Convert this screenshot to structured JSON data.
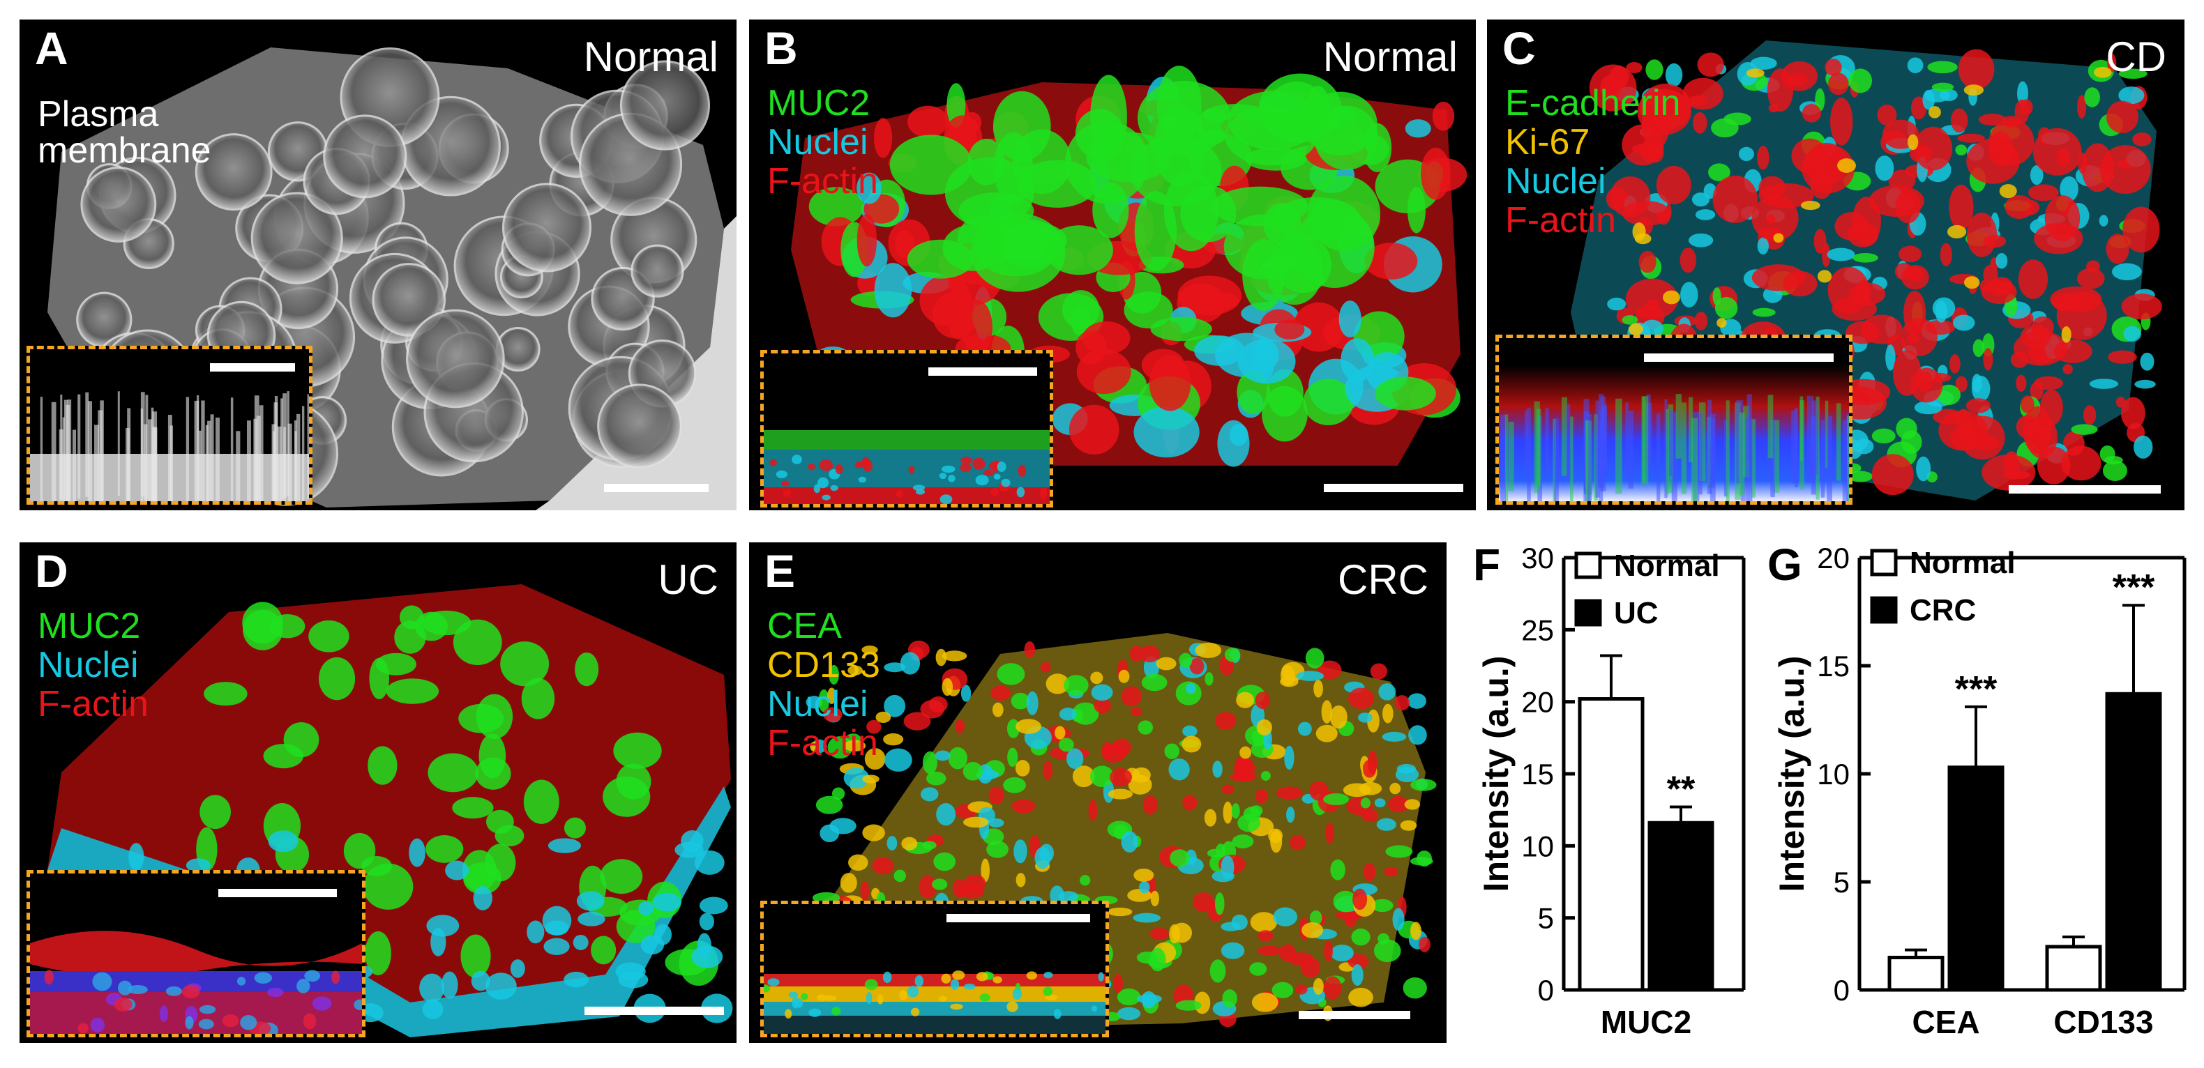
{
  "panels": {
    "A": {
      "letter": "A",
      "condition": "Normal",
      "label1": "Plasma",
      "label2": "membrane"
    },
    "B": {
      "letter": "B",
      "condition": "Normal",
      "stains": [
        "MUC2",
        "Nuclei",
        "F-actin"
      ]
    },
    "C": {
      "letter": "C",
      "condition": "CD",
      "stains": [
        "E-cadherin",
        "Ki-67",
        "Nuclei",
        "F-actin"
      ]
    },
    "D": {
      "letter": "D",
      "condition": "UC",
      "stains": [
        "MUC2",
        "Nuclei",
        "F-actin"
      ]
    },
    "E": {
      "letter": "E",
      "condition": "CRC",
      "stains": [
        "CEA",
        "CD133",
        "Nuclei",
        "F-actin"
      ]
    }
  },
  "colors": {
    "green": "#1ee01e",
    "cyan": "#18c8e0",
    "red": "#e8141a",
    "yellow": "#f2c200",
    "blue": "#2a6cff",
    "inset_border": "#f5a623"
  },
  "chart_data": [
    {
      "panel": "F",
      "type": "bar",
      "categories": [
        "MUC2"
      ],
      "series": [
        {
          "name": "Normal",
          "values": [
            20.2
          ],
          "errors": [
            3.0
          ],
          "fill": "#ffffff",
          "significance": [
            ""
          ]
        },
        {
          "name": "UC",
          "values": [
            11.6
          ],
          "errors": [
            1.1
          ],
          "fill": "#000000",
          "significance": [
            "**"
          ]
        }
      ],
      "ylabel": "Intensity (a.u.)",
      "ylim": [
        0,
        30
      ],
      "yticks": [
        0,
        5,
        10,
        15,
        20,
        25,
        30
      ],
      "legend": "top-right"
    },
    {
      "panel": "G",
      "type": "bar",
      "categories": [
        "CEA",
        "CD133"
      ],
      "series": [
        {
          "name": "Normal",
          "values": [
            1.5,
            2.0
          ],
          "errors": [
            0.35,
            0.45
          ],
          "fill": "#ffffff",
          "significance": [
            "",
            ""
          ]
        },
        {
          "name": "CRC",
          "values": [
            10.3,
            13.7
          ],
          "errors": [
            2.8,
            4.1
          ],
          "fill": "#000000",
          "significance": [
            "***",
            "***"
          ]
        }
      ],
      "ylabel": "Intensity (a.u.)",
      "ylim": [
        0,
        20
      ],
      "yticks": [
        0,
        5,
        10,
        15,
        20
      ],
      "legend": "top-left"
    }
  ]
}
